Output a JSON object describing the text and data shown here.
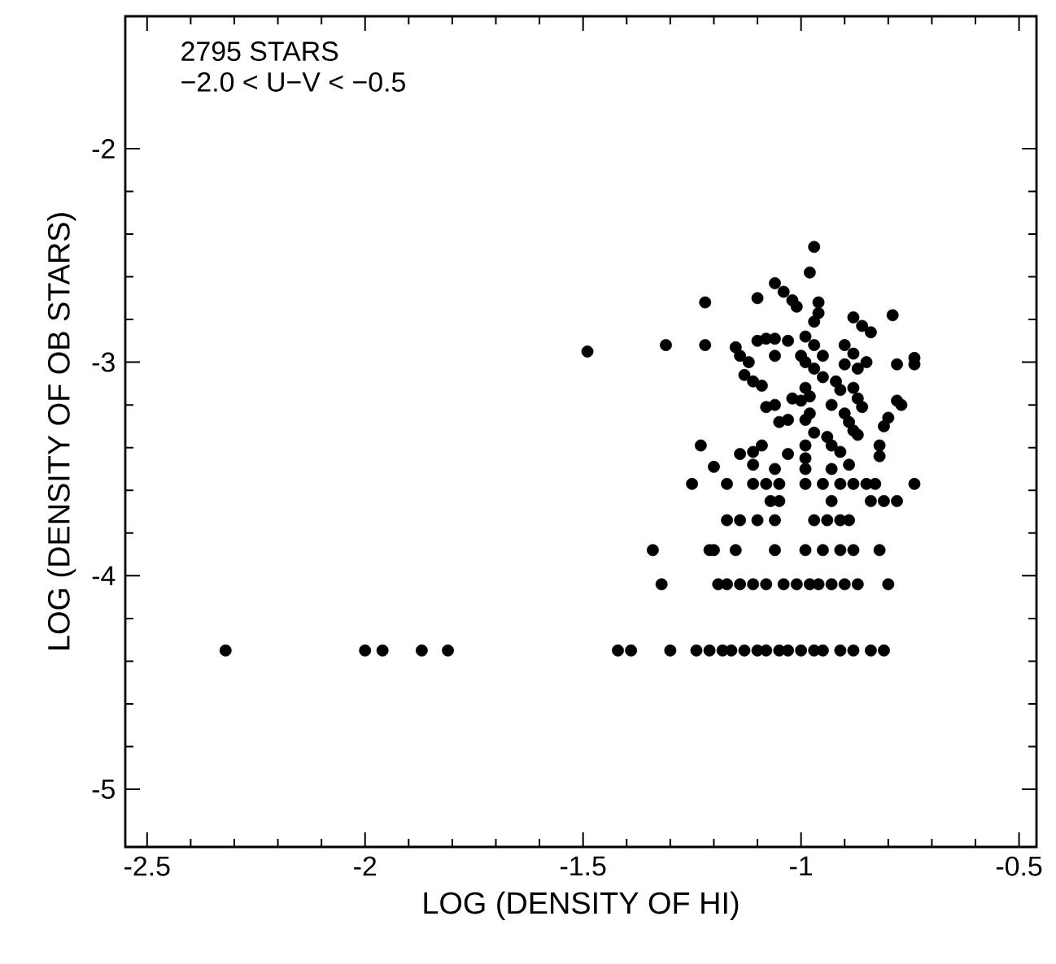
{
  "chart_data": {
    "type": "scatter",
    "xlabel": "LOG (DENSITY OF HI)",
    "ylabel": "LOG (DENSITY OF OB STARS)",
    "annotations": [
      "2795 STARS",
      "−2.0 < U−V < −0.5"
    ],
    "xlim": [
      -2.55,
      -0.46
    ],
    "ylim": [
      -5.27,
      -1.38
    ],
    "xticks": [
      -2.5,
      -2,
      -1.5,
      -1,
      -0.5
    ],
    "yticks": [
      -5,
      -4,
      -3,
      -2
    ],
    "marker": "circle",
    "grid": false,
    "series": [
      {
        "color": "#000000",
        "x": [
          -2.32,
          -2.0,
          -1.96,
          -1.87,
          -1.81,
          -1.42,
          -1.39,
          -1.3,
          -1.24,
          -1.21,
          -1.18,
          -1.16,
          -1.13,
          -1.1,
          -1.08,
          -1.05,
          -1.03,
          -1.0,
          -0.97,
          -0.95,
          -0.91,
          -0.88,
          -0.84,
          -0.81,
          -1.32,
          -1.19,
          -1.17,
          -1.14,
          -1.11,
          -1.08,
          -1.04,
          -1.01,
          -0.98,
          -0.96,
          -0.93,
          -0.9,
          -0.87,
          -0.8,
          -1.34,
          -1.21,
          -1.2,
          -1.15,
          -1.06,
          -0.99,
          -0.95,
          -0.91,
          -0.88,
          -0.82,
          -1.17,
          -1.14,
          -1.1,
          -1.06,
          -0.97,
          -0.94,
          -0.91,
          -0.89,
          -1.07,
          -1.05,
          -0.93,
          -0.84,
          -0.81,
          -0.78,
          -1.25,
          -1.17,
          -1.11,
          -1.08,
          -1.05,
          -0.99,
          -0.95,
          -0.91,
          -0.88,
          -0.85,
          -0.83,
          -0.74,
          -0.97,
          -0.98,
          -1.06,
          -1.04,
          -1.02,
          -1.01,
          -1.22,
          -1.1,
          -0.96,
          -0.96,
          -0.97,
          -0.88,
          -0.86,
          -0.84,
          -0.79,
          -1.31,
          -1.22,
          -1.15,
          -1.14,
          -1.12,
          -1.1,
          -1.08,
          -1.06,
          -1.03,
          -0.99,
          -0.97,
          -0.9,
          -0.88,
          -1.06,
          -1.0,
          -0.99,
          -0.97,
          -0.95,
          -0.9,
          -0.87,
          -0.85,
          -0.78,
          -0.74,
          -0.74,
          -1.13,
          -1.11,
          -1.09,
          -0.99,
          -0.98,
          -1.0,
          -0.95,
          -0.92,
          -0.91,
          -0.88,
          -0.87,
          -0.86,
          -1.02,
          -0.93,
          -1.08,
          -1.06,
          -0.78,
          -0.77,
          -1.05,
          -1.03,
          -0.99,
          -0.98,
          -0.9,
          -0.89,
          -0.88,
          -0.87,
          -0.8,
          -0.81,
          -0.97,
          -0.94,
          -0.93,
          -0.91,
          -1.23,
          -1.14,
          -1.11,
          -1.09,
          -1.03,
          -0.99,
          -0.99,
          -0.82,
          -0.82,
          -1.2,
          -1.11,
          -1.06,
          -0.99,
          -0.93,
          -0.89,
          -1.49
        ],
        "values": [
          -4.35,
          -4.35,
          -4.35,
          -4.35,
          -4.35,
          -4.35,
          -4.35,
          -4.35,
          -4.35,
          -4.35,
          -4.35,
          -4.35,
          -4.35,
          -4.35,
          -4.35,
          -4.35,
          -4.35,
          -4.35,
          -4.35,
          -4.35,
          -4.35,
          -4.35,
          -4.35,
          -4.35,
          -4.04,
          -4.04,
          -4.04,
          -4.04,
          -4.04,
          -4.04,
          -4.04,
          -4.04,
          -4.04,
          -4.04,
          -4.04,
          -4.04,
          -4.04,
          -4.04,
          -3.88,
          -3.88,
          -3.88,
          -3.88,
          -3.88,
          -3.88,
          -3.88,
          -3.88,
          -3.88,
          -3.88,
          -3.74,
          -3.74,
          -3.74,
          -3.74,
          -3.74,
          -3.74,
          -3.74,
          -3.74,
          -3.65,
          -3.65,
          -3.65,
          -3.65,
          -3.65,
          -3.65,
          -3.57,
          -3.57,
          -3.57,
          -3.57,
          -3.57,
          -3.57,
          -3.57,
          -3.57,
          -3.57,
          -3.57,
          -3.57,
          -3.57,
          -2.46,
          -2.58,
          -2.63,
          -2.67,
          -2.71,
          -2.74,
          -2.72,
          -2.7,
          -2.72,
          -2.77,
          -2.81,
          -2.79,
          -2.83,
          -2.86,
          -2.78,
          -2.92,
          -2.92,
          -2.93,
          -2.97,
          -3.0,
          -2.9,
          -2.89,
          -2.89,
          -2.9,
          -2.88,
          -2.92,
          -2.92,
          -2.96,
          -2.97,
          -2.97,
          -3.0,
          -3.03,
          -2.97,
          -3.01,
          -3.03,
          -3.0,
          -3.01,
          -2.98,
          -3.01,
          -3.06,
          -3.09,
          -3.11,
          -3.12,
          -3.16,
          -3.18,
          -3.07,
          -3.09,
          -3.13,
          -3.12,
          -3.17,
          -3.21,
          -3.17,
          -3.2,
          -3.21,
          -3.2,
          -3.18,
          -3.2,
          -3.28,
          -3.27,
          -3.27,
          -3.24,
          -3.24,
          -3.28,
          -3.32,
          -3.34,
          -3.26,
          -3.3,
          -3.33,
          -3.35,
          -3.39,
          -3.42,
          -3.39,
          -3.43,
          -3.42,
          -3.39,
          -3.43,
          -3.39,
          -3.45,
          -3.39,
          -3.44,
          -3.49,
          -3.48,
          -3.5,
          -3.5,
          -3.5,
          -3.48,
          -2.95
        ]
      }
    ]
  }
}
